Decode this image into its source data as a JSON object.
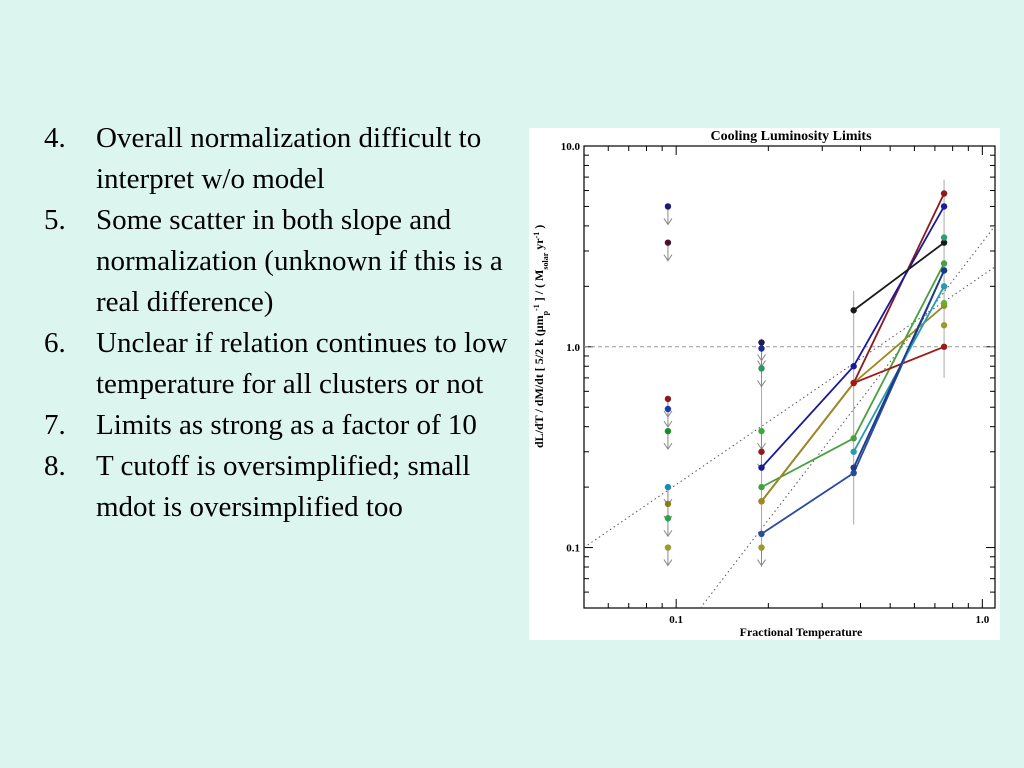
{
  "slide": {
    "items": [
      {
        "num": "4.",
        "text": "Overall normalization difficult to interpret w/o model"
      },
      {
        "num": "5.",
        "text": "Some scatter in both slope and normalization (unknown if this is a real difference)"
      },
      {
        "num": "6.",
        "text": "Unclear if relation continues to low temperature for all clusters or not"
      },
      {
        "num": "7.",
        "text": "Limits as strong as a factor of 10"
      },
      {
        "num": "8.",
        "text": "T cutoff is oversimplified; small mdot is oversimplified too"
      }
    ]
  },
  "chart_data": {
    "type": "line",
    "title": "Cooling Luminosity Limits",
    "xlabel": "Fractional Temperature",
    "ylabel": "dL/dT / dM/dt [ 5/2 k (μm_p)^-1 ] / ( M_solar yr^-1 )",
    "xscale": "log",
    "yscale": "log",
    "xlim": [
      0.05,
      1.1
    ],
    "ylim": [
      0.05,
      10.0
    ],
    "x_ticks": [
      {
        "v": 0.1,
        "label": "0.1"
      },
      {
        "v": 1.0,
        "label": "1.0"
      }
    ],
    "y_ticks": [
      {
        "v": 0.1,
        "label": "0.1"
      },
      {
        "v": 1.0,
        "label": "1.0"
      },
      {
        "v": 10.0,
        "label": "10.0"
      }
    ],
    "reference_line_y": 1.0,
    "dotted_lines": [
      {
        "x": [
          0.05,
          1.1
        ],
        "y": [
          0.1,
          2.5
        ]
      },
      {
        "x": [
          0.12,
          1.1
        ],
        "y": [
          0.05,
          4.0
        ]
      }
    ],
    "upper_limits_x01": [
      {
        "y": 5.0,
        "color": "#1a1a7a"
      },
      {
        "y": 3.3,
        "color": "#4a1030"
      },
      {
        "y": 0.55,
        "color": "#8b1a1a"
      },
      {
        "y": 0.49,
        "color": "#1a3ab0"
      },
      {
        "y": 0.38,
        "color": "#1a8a2a"
      },
      {
        "y": 0.2,
        "color": "#1a8ab0"
      },
      {
        "y": 0.165,
        "color": "#8a7a1a"
      },
      {
        "y": 0.14,
        "color": "#2aa04a"
      },
      {
        "y": 0.1,
        "color": "#9a9a30"
      }
    ],
    "series": [
      {
        "color": "#8b1a1a",
        "x": [
          0.19,
          0.38,
          0.75
        ],
        "y": [
          0.17,
          0.66,
          5.8
        ]
      },
      {
        "color": "#1a1a9a",
        "x": [
          0.19,
          0.38,
          0.75
        ],
        "y": [
          0.25,
          0.8,
          5.0
        ]
      },
      {
        "color": "#1a1a1a",
        "x": [
          0.38,
          0.75
        ],
        "y": [
          1.52,
          3.3
        ]
      },
      {
        "color": "#2a4aa0",
        "x": [
          0.19,
          0.38,
          0.75
        ],
        "y": [
          0.117,
          0.235,
          2.4
        ]
      },
      {
        "color": "#4aa040",
        "x": [
          0.19,
          0.38,
          0.75
        ],
        "y": [
          0.2,
          0.35,
          2.6
        ]
      },
      {
        "color": "#9a8a20",
        "x": [
          0.19,
          0.38,
          0.75
        ],
        "y": [
          0.17,
          0.66,
          1.6
        ]
      },
      {
        "color": "#a01818",
        "x": [
          0.38,
          0.75
        ],
        "y": [
          0.66,
          1.0
        ]
      },
      {
        "color": "#2a9ab0",
        "x": [
          0.38,
          0.75
        ],
        "y": [
          0.3,
          2.0
        ]
      },
      {
        "color": "#1a3a8a",
        "x": [
          0.38,
          0.75
        ],
        "y": [
          0.25,
          2.4
        ]
      }
    ],
    "upper_limits_x019": [
      {
        "y": 1.05,
        "color": "#1a1a5a"
      },
      {
        "y": 0.98,
        "color": "#1a2a9a"
      },
      {
        "y": 0.78,
        "color": "#2a9a5a"
      },
      {
        "y": 0.38,
        "color": "#3aaa3a"
      },
      {
        "y": 0.3,
        "color": "#8b1a1a"
      },
      {
        "y": 0.1,
        "color": "#9a9a30"
      }
    ],
    "extra_points": [
      {
        "x": 0.75,
        "y": 3.5,
        "color": "#2aa07a"
      },
      {
        "x": 0.75,
        "y": 1.28,
        "color": "#9a9a30"
      },
      {
        "x": 0.75,
        "y": 1.65,
        "color": "#6ab030"
      }
    ]
  }
}
